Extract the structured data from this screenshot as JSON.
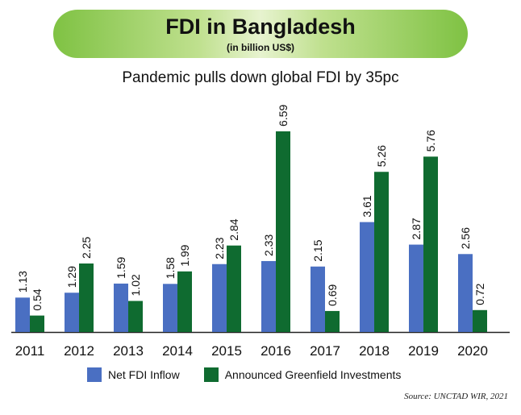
{
  "header": {
    "title": "FDI in Bangladesh",
    "unit": "(in billion US$)",
    "subtitle": "Pandemic pulls down global FDI by 35pc"
  },
  "source": "Source: UNCTAD WIR, 2021",
  "colors": {
    "net_fdi": "#4a6fc2",
    "greenfield": "#0f6b30",
    "axis": "#222222"
  },
  "chart_data": {
    "type": "bar",
    "title": "FDI in Bangladesh",
    "subtitle": "Pandemic pulls down global FDI by 35pc",
    "ylabel": "",
    "xlabel": "",
    "categories": [
      "2011",
      "2012",
      "2013",
      "2014",
      "2015",
      "2016",
      "2017",
      "2018",
      "2019",
      "2020"
    ],
    "series": [
      {
        "name": "Net FDI Inflow",
        "values": [
          1.13,
          1.29,
          1.59,
          1.58,
          2.23,
          2.33,
          2.15,
          3.61,
          2.87,
          2.56
        ]
      },
      {
        "name": "Announced Greenfield Investments",
        "values": [
          0.54,
          2.25,
          1.02,
          1.99,
          2.84,
          6.59,
          0.69,
          5.26,
          5.76,
          0.72
        ]
      }
    ],
    "value_labels": {
      "net": [
        "1.13",
        "1.29",
        "1.59",
        "1.58",
        "2.23",
        "2.33",
        "2.15",
        "3.61",
        "2.87",
        "2.56"
      ],
      "greenfield": [
        "0.54",
        "2.25",
        "1.02",
        "1.99",
        "2.84",
        "6.59",
        "0.69",
        "5.26",
        "5.76",
        "0.72"
      ]
    },
    "ylim": [
      0,
      6.59
    ],
    "legend_position": "bottom",
    "grid": false
  }
}
